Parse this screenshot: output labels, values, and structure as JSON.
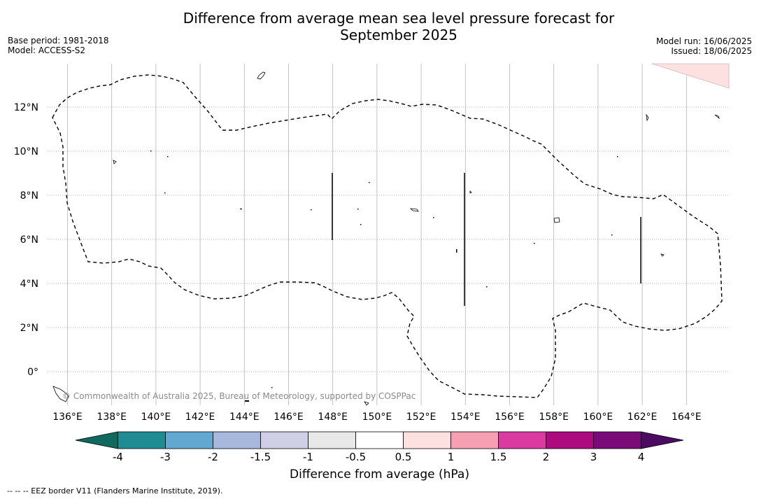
{
  "title_line1": "Difference from average mean sea level pressure forecast for",
  "title_line2": "September 2025",
  "base_period": "Base period: 1981-2018",
  "model": "Model: ACCESS-S2",
  "model_run": "Model run: 16/06/2025",
  "issued": "Issued: 18/06/2025",
  "copyright": "© Commonwealth of Australia 2025, Bureau of Meteorology, supported by COSPPac",
  "footer": "--  --  -- EEZ border V11 (Flanders Marine Institute, 2019).",
  "map": {
    "lon_labels": [
      "136°E",
      "138°E",
      "140°E",
      "142°E",
      "144°E",
      "146°E",
      "148°E",
      "150°E",
      "152°E",
      "154°E",
      "156°E",
      "158°E",
      "160°E",
      "162°E",
      "164°E"
    ],
    "lat_labels": [
      "12°N",
      "10°N",
      "8°N",
      "6°N",
      "4°N",
      "2°N",
      "0°"
    ],
    "lon_range": [
      135.1,
      167.0
    ],
    "lat_range": [
      -1.5,
      14.0
    ],
    "grid": true
  },
  "colorbar": {
    "title": "Difference from average (hPa)",
    "tick_labels": [
      "-4",
      "-3",
      "-2",
      "-1.5",
      "-1",
      "-0.5",
      "0.5",
      "1",
      "1.5",
      "2",
      "3",
      "4"
    ],
    "colors": [
      "#1e8c92",
      "#62a8d2",
      "#a7b8dc",
      "#cfd0e8",
      "#e8e8e8",
      "#ffffff",
      "#fde1e1",
      "#f7a0b4",
      "#db3aa0",
      "#ac0a7e",
      "#7a0a78"
    ],
    "under_color": "#10695f",
    "over_color": "#4c0a62"
  },
  "chart_data": {
    "type": "heatmap",
    "title": "Difference from average mean sea level pressure forecast for September 2025",
    "xlabel": "",
    "ylabel": "",
    "x_ticks": [
      "136°E",
      "138°E",
      "140°E",
      "142°E",
      "144°E",
      "146°E",
      "148°E",
      "150°E",
      "152°E",
      "154°E",
      "156°E",
      "158°E",
      "160°E",
      "162°E",
      "164°E"
    ],
    "y_ticks": [
      "12°N",
      "10°N",
      "8°N",
      "6°N",
      "4°N",
      "2°N",
      "0°"
    ],
    "legend_title": "Difference from average (hPa)",
    "legend_ticks": [
      -4,
      -3,
      -2,
      -1.5,
      -1,
      -0.5,
      0.5,
      1,
      1.5,
      2,
      3,
      4
    ],
    "shaded_regions": [
      {
        "category": "0.5 to 1",
        "color": "#fde1e1",
        "location": "top-right corner (~163.5–167°E, 12.8–14°N)"
      }
    ],
    "background_category": "-0.5 to 0.5"
  }
}
